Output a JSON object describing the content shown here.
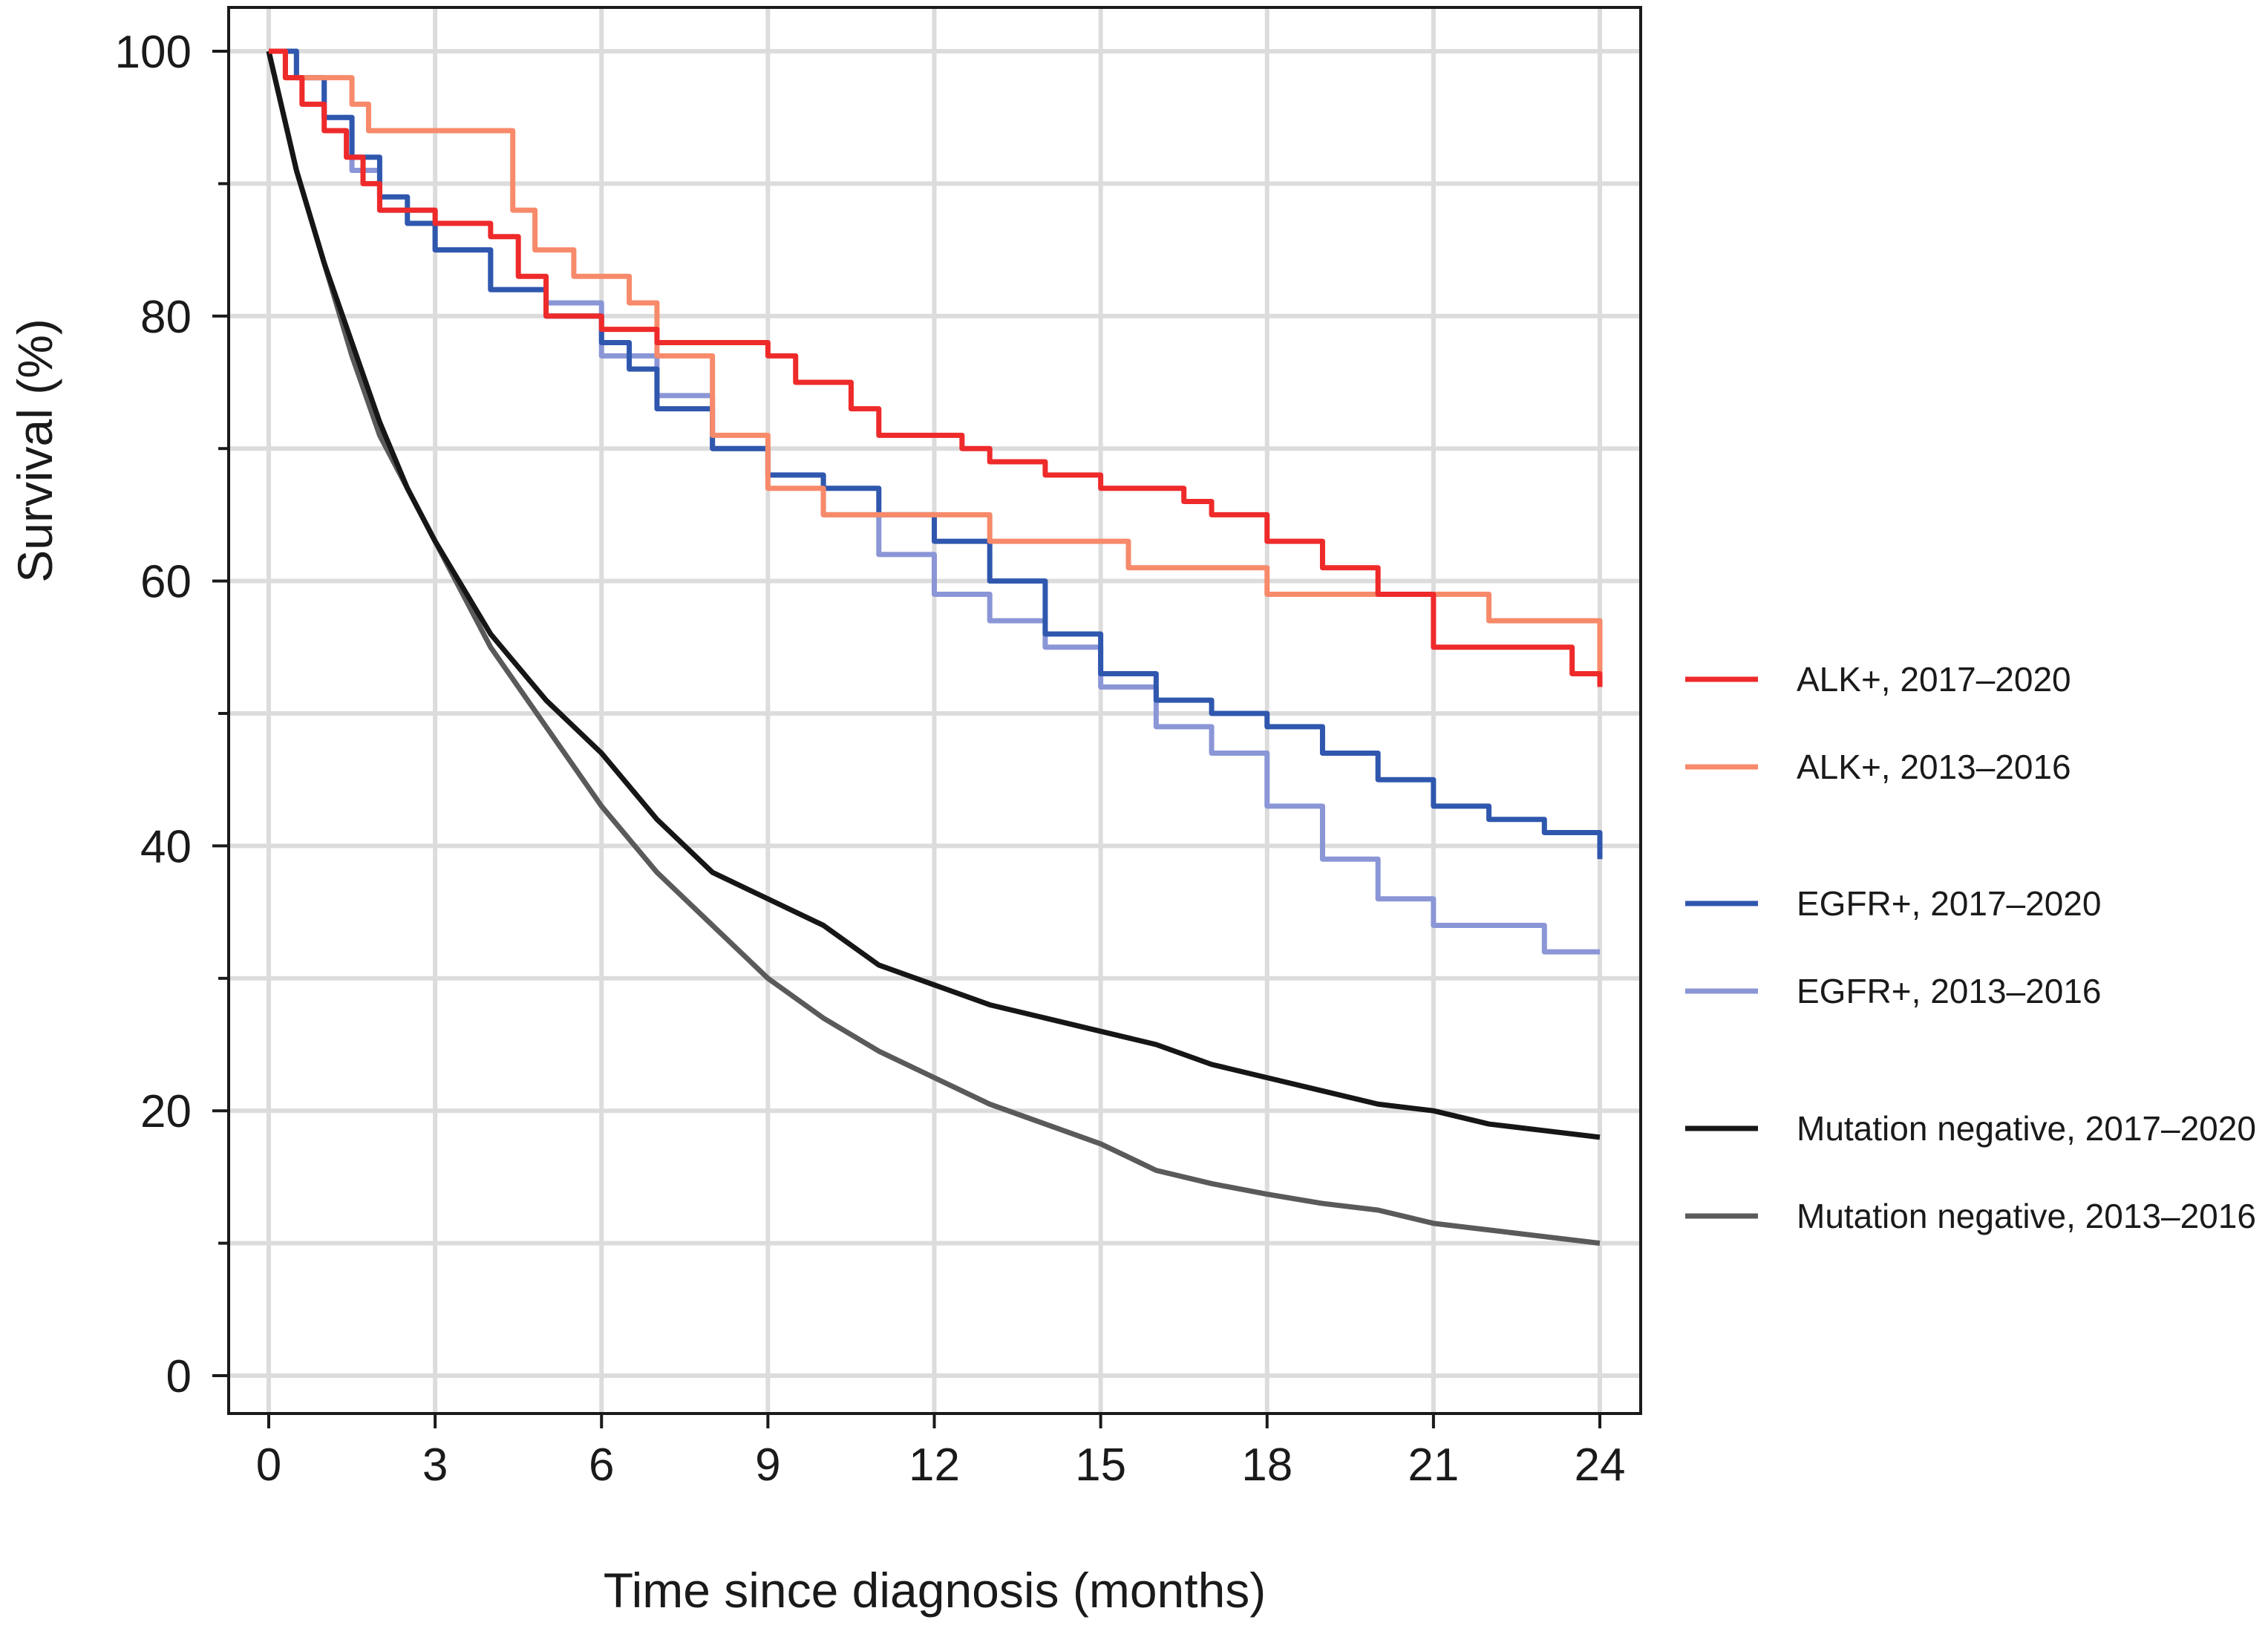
{
  "chart_data": {
    "type": "line",
    "title": "",
    "xlabel": "Time since diagnosis (months)",
    "ylabel": "Survival (%)",
    "xlim": [
      0,
      24
    ],
    "ylim": [
      0,
      100
    ],
    "x_ticks": [
      0,
      3,
      6,
      9,
      12,
      15,
      18,
      21,
      24
    ],
    "y_ticks": [
      0,
      20,
      40,
      60,
      80,
      100
    ],
    "grid": true,
    "legend_position": "right",
    "series": [
      {
        "name": "ALK+, 2017–2020",
        "color": "#ee2a2a",
        "step": true,
        "x": [
          0,
          0.3,
          0.6,
          1.0,
          1.4,
          1.7,
          2.0,
          3.0,
          4.0,
          4.5,
          5.0,
          6.0,
          7.0,
          9.0,
          9.5,
          10.5,
          11.0,
          12.5,
          13.0,
          14.0,
          15.0,
          16.5,
          17.0,
          18.0,
          19.0,
          20.0,
          21.0,
          22.0,
          23.5,
          24.0
        ],
        "y": [
          100,
          98,
          96,
          94,
          92,
          90,
          88,
          87,
          86,
          83,
          80,
          79,
          78,
          77,
          75,
          73,
          71,
          70,
          69,
          68,
          67,
          66,
          65,
          63,
          61,
          59,
          55,
          55,
          53,
          52
        ]
      },
      {
        "name": "ALK+, 2013–2016",
        "color": "#f78a6a",
        "step": true,
        "x": [
          0,
          0.3,
          1.5,
          1.8,
          4.2,
          4.4,
          4.8,
          5.5,
          6.5,
          7.0,
          8.0,
          9.0,
          10.0,
          12.0,
          13.0,
          15.5,
          18.0,
          22.0,
          24.0
        ],
        "y": [
          100,
          98,
          96,
          94,
          94,
          88,
          85,
          83,
          81,
          77,
          71,
          67,
          65,
          65,
          63,
          61,
          59,
          57,
          53
        ]
      },
      {
        "name": "EGFR+, 2017–2020",
        "color": "#2f57ae",
        "step": true,
        "x": [
          0,
          0.5,
          1.0,
          1.5,
          2.0,
          2.5,
          3.0,
          4.0,
          5.0,
          6.0,
          6.5,
          7.0,
          8.0,
          9.0,
          10.0,
          11.0,
          12.0,
          13.0,
          14.0,
          15.0,
          16.0,
          17.0,
          18.0,
          19.0,
          20.0,
          21.0,
          22.0,
          23.0,
          24.0
        ],
        "y": [
          100,
          98,
          95,
          92,
          89,
          87,
          85,
          82,
          80,
          78,
          76,
          73,
          70,
          68,
          67,
          65,
          63,
          60,
          56,
          53,
          51,
          50,
          49,
          47,
          45,
          43,
          42,
          41,
          39
        ]
      },
      {
        "name": "EGFR+, 2013–2016",
        "color": "#8a96d6",
        "step": true,
        "x": [
          0,
          0.5,
          1.0,
          1.5,
          2.0,
          3.0,
          4.0,
          5.0,
          6.0,
          7.0,
          8.0,
          9.0,
          10.0,
          11.0,
          12.0,
          13.0,
          14.0,
          15.0,
          16.0,
          17.0,
          18.0,
          19.0,
          20.0,
          21.0,
          22.0,
          23.0,
          24.0
        ],
        "y": [
          100,
          98,
          95,
          91,
          88,
          85,
          82,
          81,
          77,
          74,
          70,
          68,
          65,
          62,
          59,
          57,
          55,
          52,
          49,
          47,
          43,
          39,
          36,
          34,
          34,
          32,
          32
        ]
      },
      {
        "name": "Mutation negative, 2017–2020",
        "color": "#161616",
        "step": false,
        "x": [
          0,
          0.5,
          1.0,
          1.5,
          2.0,
          2.5,
          3.0,
          4.0,
          5.0,
          6.0,
          7.0,
          8.0,
          9.0,
          10.0,
          11.0,
          12.0,
          13.0,
          14.0,
          15.0,
          16.0,
          17.0,
          18.0,
          19.0,
          20.0,
          21.0,
          22.0,
          23.0,
          24.0
        ],
        "y": [
          100,
          91,
          84,
          78,
          72,
          67,
          63,
          56,
          51,
          47,
          42,
          38,
          36,
          34,
          31,
          29.5,
          28,
          27,
          26,
          25,
          23.5,
          22.5,
          21.5,
          20.5,
          20,
          19,
          18.5,
          18
        ]
      },
      {
        "name": "Mutation negative, 2013–2016",
        "color": "#5a5a5a",
        "step": false,
        "x": [
          0,
          0.5,
          1.0,
          1.5,
          2.0,
          2.5,
          3.0,
          4.0,
          5.0,
          6.0,
          7.0,
          8.0,
          9.0,
          10.0,
          11.0,
          12.0,
          13.0,
          14.0,
          15.0,
          16.0,
          17.0,
          18.0,
          19.0,
          20.0,
          21.0,
          22.0,
          23.0,
          24.0
        ],
        "y": [
          100,
          91,
          84,
          77,
          71,
          67,
          63,
          55,
          49,
          43,
          38,
          34,
          30,
          27,
          24.5,
          22.5,
          20.5,
          19,
          17.5,
          15.5,
          14.5,
          13.7,
          13,
          12.5,
          11.5,
          11,
          10.5,
          10
        ]
      }
    ]
  }
}
